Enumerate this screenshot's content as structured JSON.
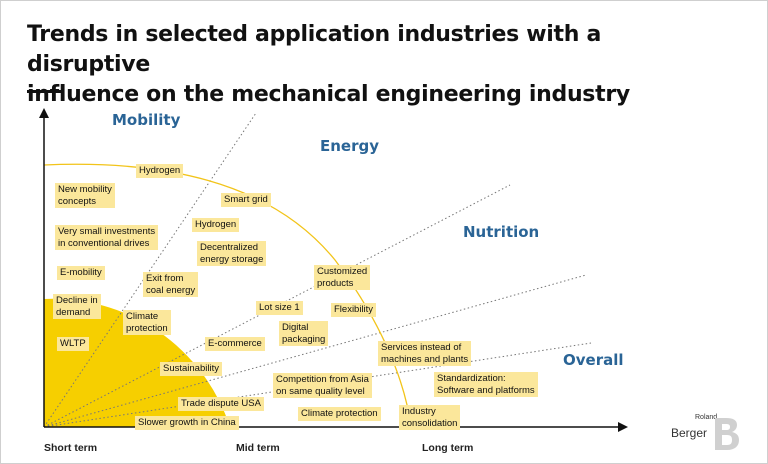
{
  "title_line1": "Trends in selected application industries with a disruptive",
  "title_line2": "influence on the mechanical engineering industry",
  "sectors": {
    "mobility": "Mobility",
    "energy": "Energy",
    "nutrition": "Nutrition",
    "overall": "Overall"
  },
  "axis": {
    "short_term": "Short term",
    "mid_term": "Mid term",
    "long_term": "Long term"
  },
  "tags": {
    "hydrogen_mobility": "Hydrogen",
    "new_mobility_1": "New mobility",
    "new_mobility_2": "concepts",
    "small_invest_1": "Very small investments",
    "small_invest_2": "in conventional drives",
    "emobility": "E-mobility",
    "decline_1": "Decline in",
    "decline_2": "demand",
    "wltp": "WLTP",
    "smart_grid": "Smart grid",
    "hydrogen_energy": "Hydrogen",
    "decentral_1": "Decentralized",
    "decentral_2": "energy storage",
    "exit_coal_1": "Exit from",
    "exit_coal_2": "coal energy",
    "climate_prot_1": "Climate",
    "climate_prot_2": "protection",
    "customized_1": "Customized",
    "customized_2": "products",
    "lot_size": "Lot size 1",
    "flexibility": "Flexibility",
    "digital_pack_1": "Digital",
    "digital_pack_2": "packaging",
    "ecommerce": "E-commerce",
    "services_1": "Services instead of",
    "services_2": "machines and plants",
    "sustainability": "Sustainability",
    "competition_1": "Competition from Asia",
    "competition_2": "on same quality level",
    "standardization_1": "Standardization:",
    "standardization_2": "Software and platforms",
    "trade_dispute": "Trade dispute USA",
    "climate_protection_overall": "Climate protection",
    "consolidation_1": "Industry",
    "consolidation_2": "consolidation",
    "slower_growth": "Slower growth in China"
  },
  "logo": {
    "small": "Roland",
    "main": "Berger"
  },
  "colors": {
    "sector_blue": "#2a6496",
    "tag_fill": "#fbe79b",
    "shading_yellow": "#f6cf00",
    "curve_yellow": "#f2c41a"
  }
}
